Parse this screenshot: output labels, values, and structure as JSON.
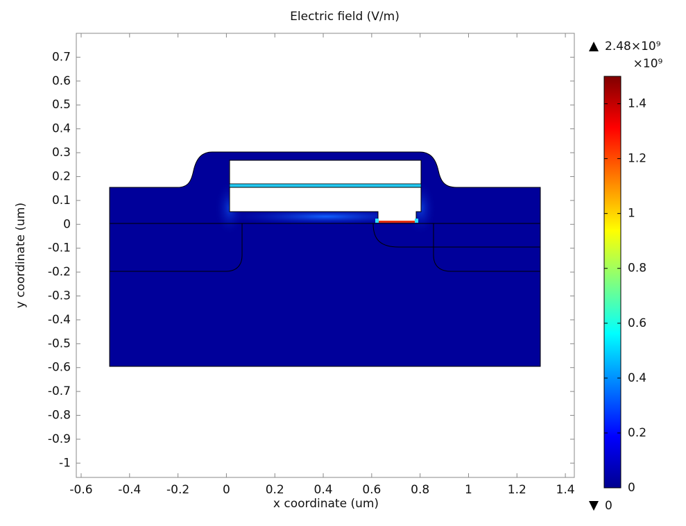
{
  "chart_data": {
    "type": "field",
    "title": "Electric field (V/m)",
    "x_label": "x coordinate (um)",
    "y_label": "y coordinate (um)",
    "xlim": [
      -0.62,
      1.437
    ],
    "ylim": [
      -1.06,
      0.8
    ],
    "xticks": [
      -0.6,
      -0.4,
      -0.2,
      0,
      0.2,
      0.4,
      0.6,
      0.8,
      1,
      1.2,
      1.4
    ],
    "yticks": [
      -1,
      -0.9,
      -0.8,
      -0.7,
      -0.6,
      -0.5,
      -0.4,
      -0.3,
      -0.2,
      -0.1,
      0,
      0.1,
      0.2,
      0.3,
      0.4,
      0.5,
      0.6,
      0.7
    ],
    "colorbar": {
      "lim": [
        0,
        1.5
      ],
      "ticks": [
        0,
        0.2,
        0.4,
        0.6,
        0.8,
        1,
        1.2,
        1.4
      ],
      "multiplier": "×10⁹",
      "max": {
        "value": 2480000000,
        "label": "2.48×10⁹"
      },
      "min": 0
    }
  }
}
